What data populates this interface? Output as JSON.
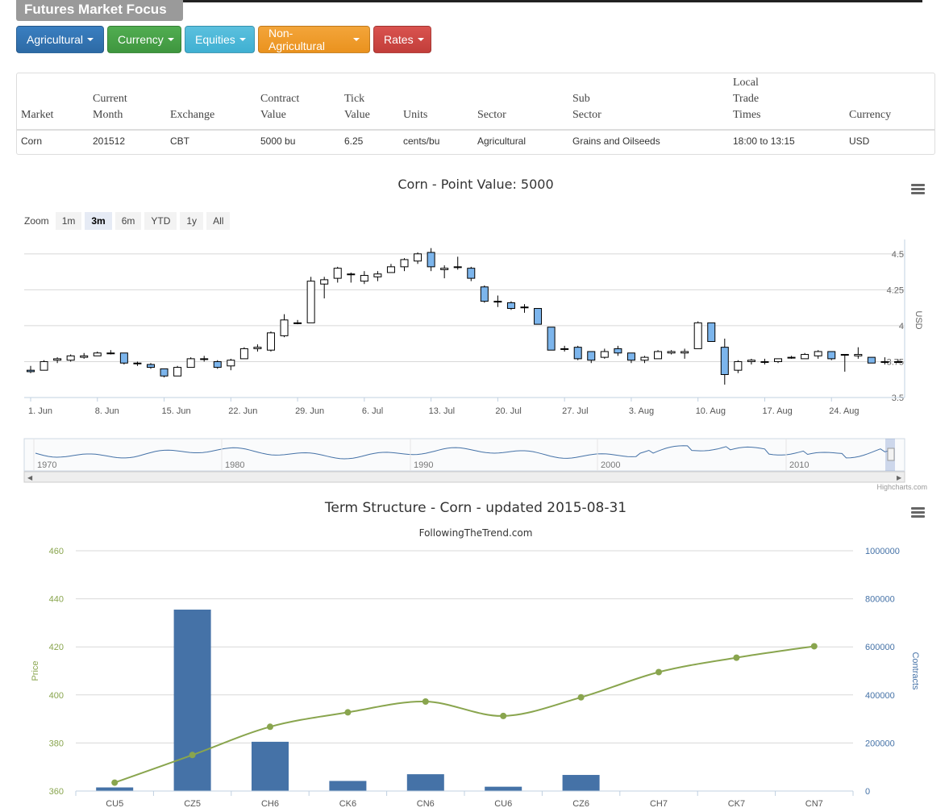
{
  "page": {
    "title": "Futures Market Focus"
  },
  "buttons": [
    {
      "label": "Agricultural"
    },
    {
      "label": "Currency"
    },
    {
      "label": "Equities"
    },
    {
      "label": "Non-Agricultural"
    },
    {
      "label": "Rates"
    }
  ],
  "table": {
    "headers": [
      "Market",
      "Current\nMonth",
      "Exchange",
      "Contract\nValue",
      "Tick\nValue",
      "Units",
      "Sector",
      "Sub\nSector",
      "Local\nTrade\nTimes",
      "Currency"
    ],
    "row": [
      "Corn",
      "201512",
      "CBT",
      "5000 bu",
      "6.25",
      "cents/bu",
      "Agricultural",
      "Grains and Oilseeds",
      "18:00 to 13:15",
      "USD"
    ]
  },
  "credit": "Highcharts.com",
  "chart_data": [
    {
      "type": "candlestick",
      "title": "Corn - Point Value: 5000",
      "ylabel": "USD",
      "ylim": [
        3.5,
        4.6
      ],
      "ytick_labels": [
        "3.5",
        "3.75",
        "4",
        "4.25",
        "4.5"
      ],
      "xtick_labels": [
        "1. Jun",
        "8. Jun",
        "15. Jun",
        "22. Jun",
        "29. Jun",
        "6. Jul",
        "13. Jul",
        "20. Jul",
        "27. Jul",
        "3. Aug",
        "10. Aug",
        "17. Aug",
        "24. Aug"
      ],
      "zoom": {
        "label": "Zoom",
        "options": [
          "1m",
          "3m",
          "6m",
          "YTD",
          "1y",
          "All"
        ],
        "selected": "3m"
      },
      "navigator_labels": [
        "1970",
        "1980",
        "1990",
        "2000",
        "2010"
      ],
      "candles": [
        [
          3.69,
          3.72,
          3.67,
          3.68
        ],
        [
          3.69,
          3.76,
          3.69,
          3.75
        ],
        [
          3.76,
          3.78,
          3.74,
          3.77
        ],
        [
          3.76,
          3.8,
          3.75,
          3.79
        ],
        [
          3.78,
          3.81,
          3.77,
          3.79
        ],
        [
          3.79,
          3.82,
          3.79,
          3.81
        ],
        [
          3.81,
          3.83,
          3.8,
          3.81
        ],
        [
          3.81,
          3.81,
          3.73,
          3.74
        ],
        [
          3.74,
          3.75,
          3.72,
          3.74
        ],
        [
          3.73,
          3.74,
          3.7,
          3.71
        ],
        [
          3.7,
          3.7,
          3.64,
          3.65
        ],
        [
          3.65,
          3.72,
          3.65,
          3.71
        ],
        [
          3.71,
          3.78,
          3.71,
          3.77
        ],
        [
          3.77,
          3.79,
          3.75,
          3.77
        ],
        [
          3.75,
          3.76,
          3.7,
          3.71
        ],
        [
          3.72,
          3.77,
          3.69,
          3.76
        ],
        [
          3.77,
          3.85,
          3.77,
          3.84
        ],
        [
          3.84,
          3.87,
          3.82,
          3.85
        ],
        [
          3.83,
          3.96,
          3.82,
          3.95
        ],
        [
          3.93,
          4.08,
          3.92,
          4.04
        ],
        [
          4.02,
          4.04,
          4.01,
          4.02
        ],
        [
          4.02,
          4.34,
          4.02,
          4.31
        ],
        [
          4.29,
          4.34,
          4.19,
          4.32
        ],
        [
          4.33,
          4.41,
          4.3,
          4.4
        ],
        [
          4.36,
          4.37,
          4.3,
          4.36
        ],
        [
          4.31,
          4.38,
          4.29,
          4.35
        ],
        [
          4.34,
          4.38,
          4.31,
          4.36
        ],
        [
          4.37,
          4.43,
          4.37,
          4.41
        ],
        [
          4.41,
          4.47,
          4.38,
          4.46
        ],
        [
          4.45,
          4.51,
          4.43,
          4.5
        ],
        [
          4.51,
          4.54,
          4.38,
          4.41
        ],
        [
          4.39,
          4.42,
          4.33,
          4.4
        ],
        [
          4.41,
          4.48,
          4.39,
          4.41
        ],
        [
          4.4,
          4.41,
          4.31,
          4.33
        ],
        [
          4.27,
          4.28,
          4.16,
          4.17
        ],
        [
          4.17,
          4.21,
          4.13,
          4.17
        ],
        [
          4.16,
          4.17,
          4.11,
          4.12
        ],
        [
          4.13,
          4.15,
          4.09,
          4.13
        ],
        [
          4.12,
          4.12,
          4.01,
          4.01
        ],
        [
          3.99,
          3.99,
          3.83,
          3.83
        ],
        [
          3.84,
          3.86,
          3.82,
          3.84
        ],
        [
          3.85,
          3.86,
          3.76,
          3.77
        ],
        [
          3.82,
          3.82,
          3.74,
          3.76
        ],
        [
          3.78,
          3.84,
          3.77,
          3.82
        ],
        [
          3.84,
          3.86,
          3.79,
          3.81
        ],
        [
          3.81,
          3.8,
          3.74,
          3.76
        ],
        [
          3.76,
          3.79,
          3.74,
          3.78
        ],
        [
          3.77,
          3.83,
          3.77,
          3.82
        ],
        [
          3.81,
          3.83,
          3.8,
          3.82
        ],
        [
          3.81,
          3.84,
          3.77,
          3.82
        ],
        [
          3.84,
          4.03,
          3.84,
          4.02
        ],
        [
          4.02,
          4.02,
          3.89,
          3.89
        ],
        [
          3.85,
          3.91,
          3.59,
          3.66
        ],
        [
          3.69,
          3.76,
          3.67,
          3.75
        ],
        [
          3.75,
          3.77,
          3.73,
          3.76
        ],
        [
          3.75,
          3.77,
          3.73,
          3.75
        ],
        [
          3.75,
          3.77,
          3.74,
          3.77
        ],
        [
          3.78,
          3.79,
          3.77,
          3.78
        ],
        [
          3.77,
          3.81,
          3.77,
          3.8
        ],
        [
          3.79,
          3.83,
          3.77,
          3.82
        ],
        [
          3.82,
          3.82,
          3.76,
          3.77
        ],
        [
          3.8,
          3.8,
          3.68,
          3.8
        ],
        [
          3.79,
          3.85,
          3.77,
          3.8
        ],
        [
          3.78,
          3.78,
          3.74,
          3.74
        ],
        [
          3.75,
          3.78,
          3.73,
          3.75
        ],
        [
          3.75,
          3.76,
          3.74,
          3.75
        ]
      ]
    },
    {
      "type": "bar+line",
      "title": "Term Structure - Corn - updated 2015-08-31",
      "subtitle": "FollowingTheTrend.com",
      "categories": [
        "CU5",
        "CZ5",
        "CH6",
        "CK6",
        "CN6",
        "CU6",
        "CZ6",
        "CH7",
        "CK7",
        "CN7"
      ],
      "ylabel_left": "Price",
      "ylabel_right": "Contracts",
      "ylim_left": [
        360,
        460
      ],
      "ylim_right": [
        0,
        1000000
      ],
      "ytick_labels_left": [
        "360",
        "380",
        "400",
        "420",
        "440",
        "460"
      ],
      "ytick_labels_right": [
        "0",
        "200000",
        "400000",
        "600000",
        "800000",
        "1000000"
      ],
      "series": [
        {
          "name": "Contracts",
          "axis": "right",
          "type": "bar",
          "values": [
            15000,
            755000,
            205000,
            42000,
            70000,
            18000,
            67000,
            0,
            0,
            0
          ]
        },
        {
          "name": "Price",
          "axis": "left",
          "type": "line",
          "values": [
            363.5,
            375.0,
            386.75,
            392.75,
            397.25,
            391.25,
            399.0,
            409.5,
            415.5,
            420.25
          ]
        }
      ],
      "colors": {
        "bar": "#4572a7",
        "line": "#89a54e"
      }
    }
  ]
}
